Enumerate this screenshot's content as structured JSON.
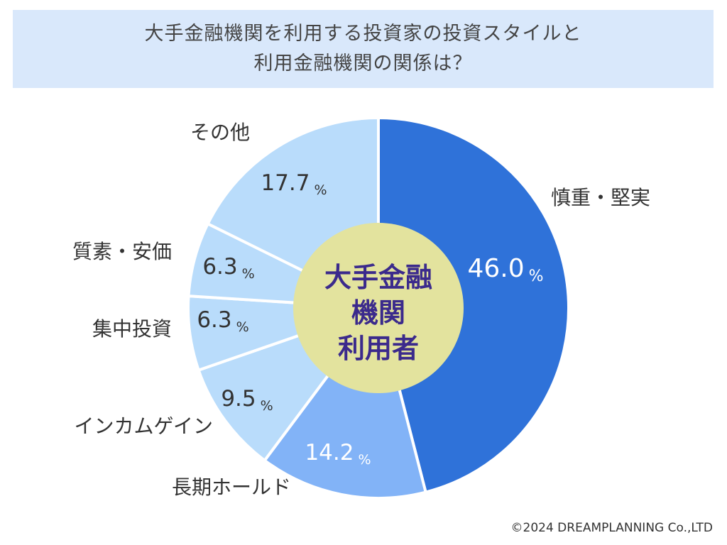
{
  "title": {
    "line1": "大手金融機関を利用する投資家の投資スタイルと",
    "line2": "利用金融機関の関係は？"
  },
  "chart_data": {
    "type": "pie",
    "title": "大手金融機関を利用する投資家の投資スタイルと利用金融機関の関係は？",
    "center_label": [
      "大手金融",
      "機関",
      "利用者"
    ],
    "unit": "%",
    "slices": [
      {
        "label": "慎重・堅実",
        "value": 46.0,
        "value_text": "46.0",
        "color": "#2f72d9",
        "text_color": "#ffffff"
      },
      {
        "label": "長期ホールド",
        "value": 14.2,
        "value_text": "14.2",
        "color": "#82b3f7",
        "text_color": "#ffffff"
      },
      {
        "label": "インカムゲイン",
        "value": 9.5,
        "value_text": "9.5",
        "color": "#b9dcfb",
        "text_color": "#333333"
      },
      {
        "label": "集中投資",
        "value": 6.3,
        "value_text": "6.3",
        "color": "#b9dcfb",
        "text_color": "#333333"
      },
      {
        "label": "質素・安価",
        "value": 6.3,
        "value_text": "6.3",
        "color": "#b9dcfb",
        "text_color": "#333333"
      },
      {
        "label": "その他",
        "value": 17.7,
        "value_text": "17.7",
        "color": "#b9dcfb",
        "text_color": "#333333"
      }
    ],
    "center_color": "#e3e39e",
    "center_text_color": "#3b2a8c"
  },
  "copyright": "©2024 DREAMPLANNING Co.,LTD"
}
